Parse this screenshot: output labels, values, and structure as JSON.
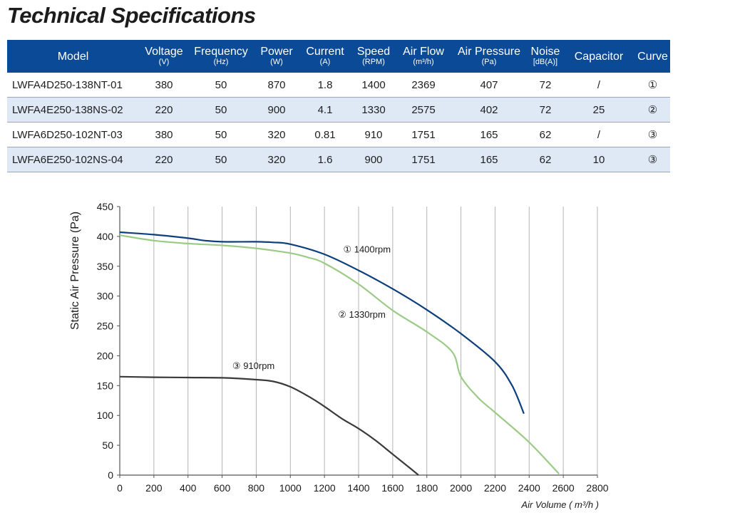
{
  "title": "Technical Specifications",
  "table": {
    "columns": [
      {
        "label": "Model",
        "unit": ""
      },
      {
        "label": "Voltage",
        "unit": "(V)"
      },
      {
        "label": "Frequency",
        "unit": "(Hz)"
      },
      {
        "label": "Power",
        "unit": "(W)"
      },
      {
        "label": "Current",
        "unit": "(A)"
      },
      {
        "label": "Speed",
        "unit": "(RPM)"
      },
      {
        "label": "Air Flow",
        "unit": "(m³/h)"
      },
      {
        "label": "Air Pressure",
        "unit": "(Pa)"
      },
      {
        "label": "Noise",
        "unit": "[dB(A)]"
      },
      {
        "label": "Capacitor",
        "unit": ""
      },
      {
        "label": "Curve",
        "unit": ""
      }
    ],
    "rows": [
      [
        "LWFA4D250-138NT-01",
        "380",
        "50",
        "870",
        "1.8",
        "1400",
        "2369",
        "407",
        "72",
        "/",
        "①"
      ],
      [
        "LWFA4E250-138NS-02",
        "220",
        "50",
        "900",
        "4.1",
        "1330",
        "2575",
        "402",
        "72",
        "25",
        "②"
      ],
      [
        "LWFA6D250-102NT-03",
        "380",
        "50",
        "320",
        "0.81",
        "910",
        "1751",
        "165",
        "62",
        "/",
        "③"
      ],
      [
        "LWFA6E250-102NS-04",
        "220",
        "50",
        "320",
        "1.6",
        "900",
        "1751",
        "165",
        "62",
        "10",
        "③"
      ]
    ]
  },
  "chart_data": {
    "type": "line",
    "xlabel": "Air Volume ( m³/h )",
    "ylabel": "Static Air Pressure  (Pa)",
    "xlim": [
      0,
      2800
    ],
    "ylim": [
      0,
      450
    ],
    "xticks": [
      "0",
      "200",
      "400",
      "600",
      "800",
      "1000",
      "1200",
      "1400",
      "1600",
      "1800",
      "2000",
      "2200",
      "2400",
      "2600",
      "2800"
    ],
    "yticks": [
      "0",
      "50",
      "100",
      "150",
      "200",
      "250",
      "300",
      "350",
      "400",
      "450"
    ],
    "grid": "vertical",
    "series": [
      {
        "name": "① 1400rpm",
        "color": "#0d3f7e",
        "x": [
          0,
          200,
          400,
          500,
          600,
          800,
          900,
          1000,
          1200,
          1400,
          1600,
          1800,
          2000,
          2200,
          2300,
          2369
        ],
        "y": [
          407,
          403,
          397,
          393,
          391,
          391,
          390,
          387,
          370,
          343,
          312,
          277,
          237,
          190,
          150,
          103
        ]
      },
      {
        "name": "② 1330rpm",
        "color": "#9ccb86",
        "x": [
          0,
          200,
          400,
          600,
          800,
          1000,
          1100,
          1200,
          1400,
          1600,
          1800,
          1950,
          2000,
          2100,
          2200,
          2400,
          2575
        ],
        "y": [
          402,
          393,
          388,
          385,
          380,
          372,
          365,
          355,
          320,
          276,
          240,
          206,
          165,
          130,
          105,
          55,
          2
        ]
      },
      {
        "name": "③ 910rpm",
        "color": "#3a3a3a",
        "x": [
          0,
          200,
          400,
          600,
          800,
          900,
          1000,
          1100,
          1200,
          1300,
          1400,
          1500,
          1600,
          1700,
          1751
        ],
        "y": [
          165,
          164,
          163.5,
          163,
          160,
          157,
          148,
          133,
          115,
          95,
          78,
          58,
          35,
          12,
          0
        ]
      }
    ]
  }
}
